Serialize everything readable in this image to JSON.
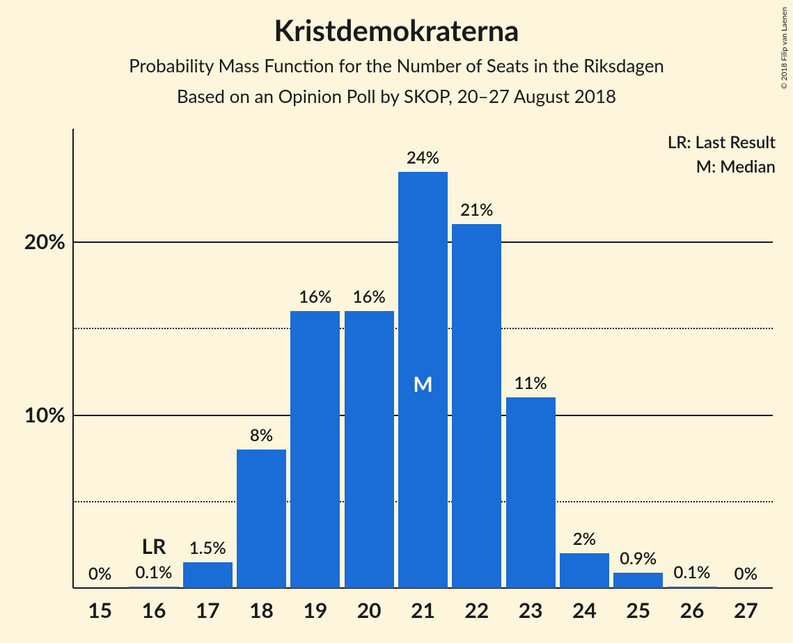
{
  "title": "Kristdemokraterna",
  "subtitle1": "Probability Mass Function for the Number of Seats in the Riksdagen",
  "subtitle2": "Based on an Opinion Poll by SKOP, 20–27 August 2018",
  "legend": {
    "lr": "LR: Last Result",
    "m": "M: Median"
  },
  "credit": "© 2018 Filip van Laenen",
  "chart": {
    "type": "bar",
    "background_color": "#fdf6dd",
    "bar_color": "#1a6cd6",
    "text_color": "#1a1a1a",
    "annot_text_color": "#ffffff",
    "title_fontsize": 42,
    "subtitle_fontsize": 26,
    "legend_fontsize": 24,
    "value_label_fontsize": 24,
    "annot_fontsize": 30,
    "xtick_fontsize": 30,
    "ytick_fontsize": 30,
    "categories": [
      "15",
      "16",
      "17",
      "18",
      "19",
      "20",
      "21",
      "22",
      "23",
      "24",
      "25",
      "26",
      "27"
    ],
    "values": [
      0,
      0.1,
      1.5,
      8,
      16,
      16,
      24,
      21,
      11,
      2,
      0.9,
      0.1,
      0
    ],
    "value_labels": [
      "0%",
      "0.1%",
      "1.5%",
      "8%",
      "16%",
      "16%",
      "24%",
      "21%",
      "11%",
      "2%",
      "0.9%",
      "0.1%",
      "0%"
    ],
    "annotations": [
      {
        "index": 1,
        "text": "LR",
        "placement": "above",
        "color": "#1a1a1a"
      },
      {
        "index": 6,
        "text": "M",
        "placement": "inside",
        "color": "#ffffff"
      }
    ],
    "ylim": [
      0,
      26.5
    ],
    "yticks_major": [
      10,
      20
    ],
    "yticks_minor": [
      5,
      15
    ],
    "ytick_labels": {
      "10": "10%",
      "20": "20%"
    },
    "bar_width_ratio": 0.92,
    "grid_color_major": "#1a1a1a",
    "grid_major_width": 2,
    "grid_minor_width": 2,
    "axis_line_width": 2
  }
}
